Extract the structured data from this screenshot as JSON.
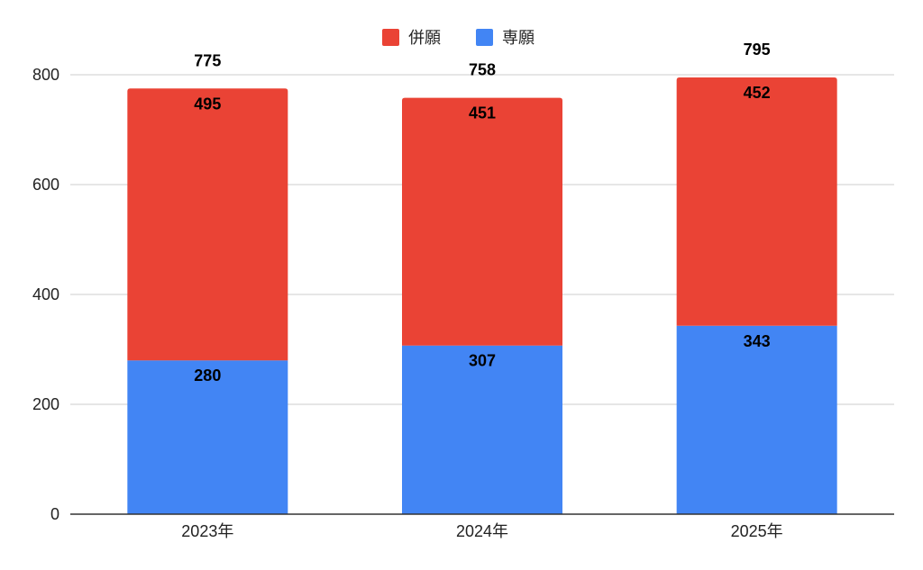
{
  "chart_data": {
    "type": "bar",
    "stacked": true,
    "title": "",
    "xlabel": "",
    "ylabel": "",
    "categories": [
      "2023年",
      "2024年",
      "2025年"
    ],
    "series": [
      {
        "name": "専願",
        "color": "#4285F4",
        "values": [
          280,
          307,
          343
        ]
      },
      {
        "name": "併願",
        "color": "#EA4335",
        "values": [
          495,
          451,
          452
        ]
      }
    ],
    "totals": [
      775,
      758,
      795
    ],
    "ylim": [
      0,
      800
    ],
    "yticks": [
      0,
      200,
      400,
      600,
      800
    ],
    "grid": true,
    "legend": {
      "position": "top-center",
      "order": [
        "併願",
        "専願"
      ]
    }
  }
}
